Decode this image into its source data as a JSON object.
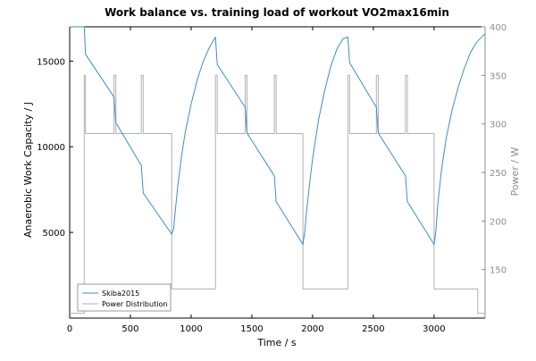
{
  "chart_data": {
    "type": "line",
    "title": "Work balance vs. training load of workout  VO2max16min",
    "xlabel": "Time / s",
    "ylabel": "Anaerobic Work Capacity / J",
    "y2label": "Power / W",
    "xlim": [
      0,
      3420
    ],
    "ylim": [
      0,
      17000
    ],
    "y2lim": [
      100,
      400
    ],
    "xticks": [
      0,
      500,
      1000,
      1500,
      2000,
      2500,
      3000
    ],
    "yticks": [
      5000,
      10000,
      15000
    ],
    "y2ticks": [
      150,
      200,
      250,
      300,
      350,
      400
    ],
    "grid": false,
    "legend_position": "bottom-left",
    "colors": {
      "wbal": "#3b8fc4",
      "power": "#b0b0b0",
      "axis": "#000000",
      "axis2": "#8c8c8c"
    },
    "series": [
      {
        "name": "Skiba2015",
        "axis": "left",
        "color": "#3b8fc4",
        "x": [
          0,
          120,
          130,
          365,
          380,
          590,
          605,
          840,
          855,
          870,
          890,
          920,
          950,
          1000,
          1050,
          1100,
          1150,
          1200,
          1215,
          1445,
          1460,
          1685,
          1700,
          1920,
          1935,
          1950,
          1975,
          2000,
          2050,
          2100,
          2150,
          2200,
          2250,
          2290,
          2305,
          2525,
          2540,
          2765,
          2780,
          3000,
          3015,
          3030,
          3060,
          3100,
          3150,
          3200,
          3250,
          3300,
          3350,
          3420
        ],
        "y": [
          17000,
          17000,
          15400,
          12900,
          11400,
          8900,
          7300,
          4900,
          5200,
          6300,
          7700,
          9400,
          10800,
          12500,
          13900,
          15000,
          15800,
          16400,
          14800,
          12300,
          10800,
          8300,
          6800,
          4300,
          5000,
          6200,
          7800,
          9300,
          11600,
          13300,
          14700,
          15700,
          16300,
          16400,
          14900,
          12300,
          10800,
          8300,
          6800,
          4300,
          5100,
          6600,
          8600,
          10500,
          12200,
          13500,
          14600,
          15500,
          16100,
          16600
        ]
      },
      {
        "name": "Power Distribution",
        "axis": "right",
        "color": "#b0b0b0",
        "x": [
          0,
          120,
          120,
          130,
          130,
          365,
          365,
          380,
          380,
          590,
          590,
          605,
          605,
          840,
          840,
          1200,
          1200,
          1215,
          1215,
          1445,
          1445,
          1460,
          1460,
          1685,
          1685,
          1700,
          1700,
          1920,
          1920,
          2290,
          2290,
          2305,
          2305,
          2525,
          2525,
          2540,
          2540,
          2765,
          2765,
          2780,
          2780,
          3000,
          3000,
          3360,
          3360,
          3420
        ],
        "y": [
          105,
          105,
          350,
          350,
          290,
          290,
          350,
          350,
          290,
          290,
          350,
          350,
          290,
          290,
          130,
          130,
          350,
          350,
          290,
          290,
          350,
          350,
          290,
          290,
          350,
          350,
          290,
          290,
          130,
          130,
          350,
          350,
          290,
          290,
          350,
          350,
          290,
          290,
          350,
          350,
          290,
          290,
          130,
          130,
          105,
          105
        ]
      }
    ]
  }
}
